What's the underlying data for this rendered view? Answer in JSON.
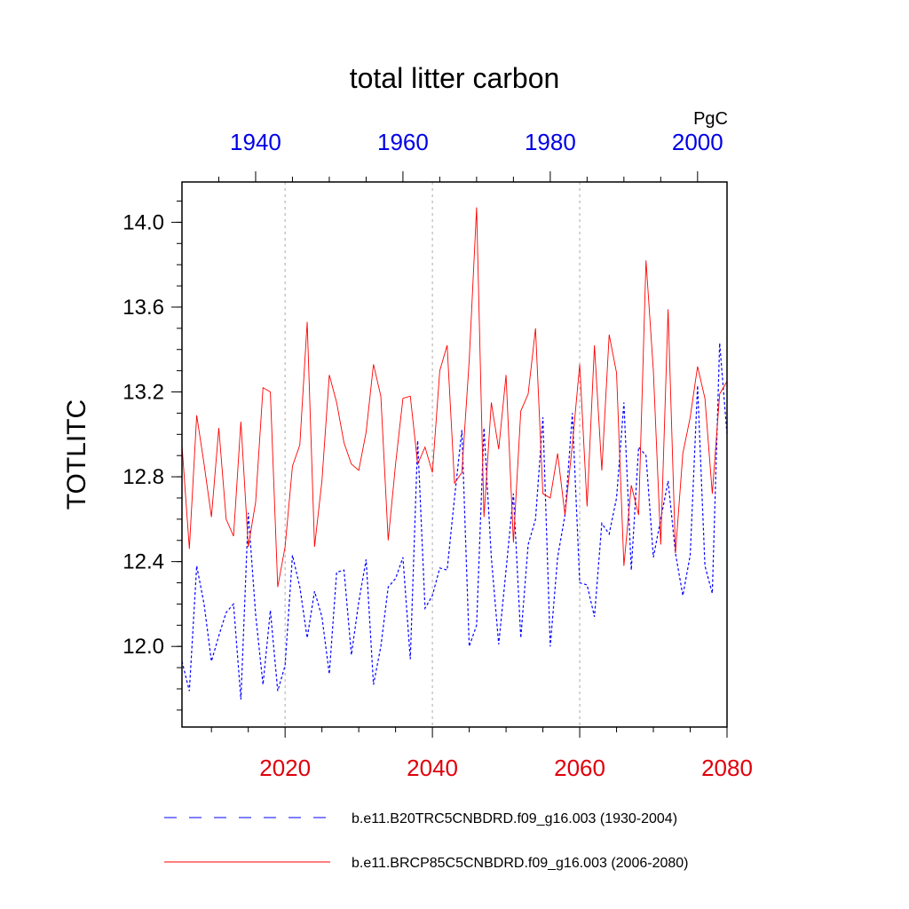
{
  "chart_data": {
    "type": "line",
    "title": "total litter carbon",
    "units": "PgC",
    "ylabel": "TOTLITC",
    "ylim": [
      11.62,
      14.19
    ],
    "yticks": [
      "12.0",
      "12.4",
      "12.8",
      "13.2",
      "13.6",
      "14.0"
    ],
    "bottom_axis": {
      "label_color": "#e0000b",
      "range": [
        2006,
        2080
      ],
      "ticks": [
        "2020",
        "2040",
        "2060",
        "2080"
      ]
    },
    "top_axis": {
      "label_color": "#0000e6",
      "range": [
        1930,
        2004
      ],
      "ticks": [
        "1940",
        "1960",
        "1980",
        "2000"
      ]
    },
    "series": [
      {
        "name": "b.e11.B20TRC5CNBDRD.f09_g16.003 (1930-2004)",
        "color": "#0000ff",
        "style": "dashed",
        "axis": "top",
        "x": [
          1930,
          1931,
          1932,
          1933,
          1934,
          1935,
          1936,
          1937,
          1938,
          1939,
          1940,
          1941,
          1942,
          1943,
          1944,
          1945,
          1946,
          1947,
          1948,
          1949,
          1950,
          1951,
          1952,
          1953,
          1954,
          1955,
          1956,
          1957,
          1958,
          1959,
          1960,
          1961,
          1962,
          1963,
          1964,
          1965,
          1966,
          1967,
          1968,
          1969,
          1970,
          1971,
          1972,
          1973,
          1974,
          1975,
          1976,
          1977,
          1978,
          1979,
          1980,
          1981,
          1982,
          1983,
          1984,
          1985,
          1986,
          1987,
          1988,
          1989,
          1990,
          1991,
          1992,
          1993,
          1994,
          1995,
          1996,
          1997,
          1998,
          1999,
          2000,
          2001,
          2002,
          2003,
          2004
        ],
        "values": [
          11.93,
          11.79,
          12.38,
          12.2,
          11.93,
          12.05,
          12.16,
          12.2,
          11.75,
          12.63,
          12.15,
          11.82,
          12.17,
          11.79,
          11.91,
          12.43,
          12.28,
          12.04,
          12.26,
          12.14,
          11.87,
          12.35,
          12.36,
          11.96,
          12.21,
          12.41,
          11.82,
          12.0,
          12.28,
          12.32,
          12.42,
          11.94,
          12.97,
          12.18,
          12.24,
          12.37,
          12.36,
          12.7,
          13.02,
          12.0,
          12.1,
          13.03,
          12.42,
          12.01,
          12.36,
          12.72,
          12.04,
          12.48,
          12.6,
          13.08,
          12.0,
          12.42,
          12.62,
          13.1,
          12.3,
          12.29,
          12.14,
          12.58,
          12.53,
          12.7,
          13.15,
          12.36,
          12.94,
          12.9,
          12.42,
          12.6,
          12.78,
          12.44,
          12.24,
          12.43,
          13.23,
          12.38,
          12.25,
          13.43,
          13.0
        ]
      },
      {
        "name": "b.e11.BRCP85C5CNBDRD.f09_g16.003 (2006-2080)",
        "color": "#ff0000",
        "style": "solid",
        "axis": "bottom",
        "x": [
          2006,
          2007,
          2008,
          2009,
          2010,
          2011,
          2012,
          2013,
          2014,
          2015,
          2016,
          2017,
          2018,
          2019,
          2020,
          2021,
          2022,
          2023,
          2024,
          2025,
          2026,
          2027,
          2028,
          2029,
          2030,
          2031,
          2032,
          2033,
          2034,
          2035,
          2036,
          2037,
          2038,
          2039,
          2040,
          2041,
          2042,
          2043,
          2044,
          2045,
          2046,
          2047,
          2048,
          2049,
          2050,
          2051,
          2052,
          2053,
          2054,
          2055,
          2056,
          2057,
          2058,
          2059,
          2060,
          2061,
          2062,
          2063,
          2064,
          2065,
          2066,
          2067,
          2068,
          2069,
          2070,
          2071,
          2072,
          2073,
          2074,
          2075,
          2076,
          2077,
          2078,
          2079,
          2080
        ],
        "values": [
          12.95,
          12.46,
          13.09,
          12.86,
          12.61,
          13.03,
          12.6,
          12.52,
          13.06,
          12.47,
          12.68,
          13.22,
          13.2,
          12.28,
          12.47,
          12.85,
          12.95,
          13.53,
          12.47,
          12.78,
          13.28,
          13.15,
          12.96,
          12.86,
          12.83,
          13.01,
          13.33,
          13.18,
          12.5,
          12.86,
          13.17,
          13.18,
          12.86,
          12.94,
          12.82,
          13.3,
          13.42,
          12.77,
          12.82,
          13.35,
          14.07,
          12.61,
          13.15,
          12.93,
          13.28,
          12.49,
          13.11,
          13.19,
          13.5,
          12.72,
          12.7,
          12.91,
          12.62,
          12.95,
          13.33,
          12.66,
          13.42,
          12.83,
          13.47,
          13.29,
          12.38,
          12.76,
          12.62,
          13.82,
          13.3,
          12.48,
          13.59,
          12.44,
          12.91,
          13.08,
          13.32,
          13.17,
          12.72,
          13.19,
          13.25
        ]
      }
    ]
  }
}
